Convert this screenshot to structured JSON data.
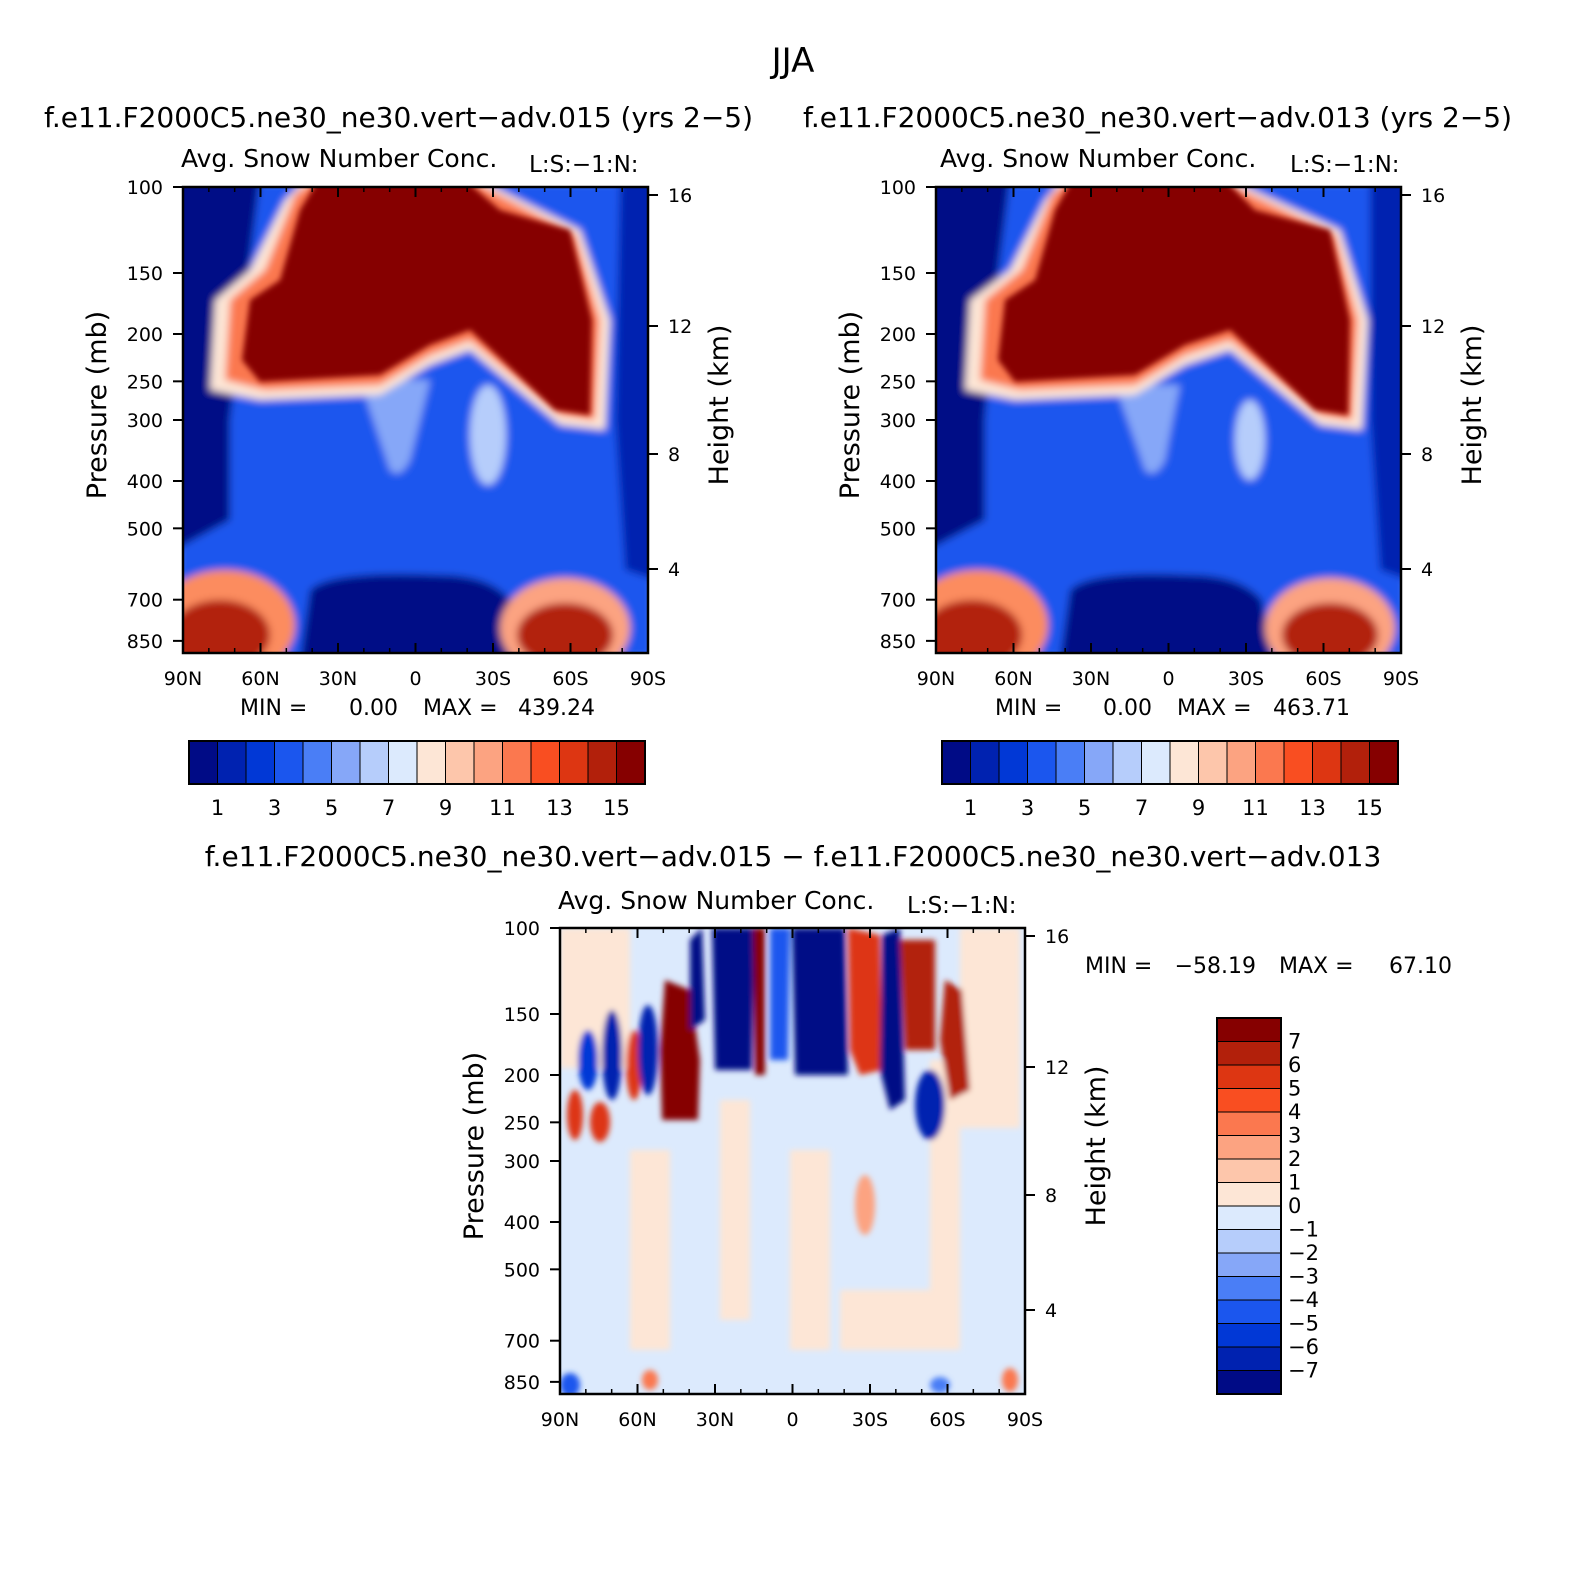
{
  "figure": {
    "title": "JJA"
  },
  "colors": {
    "abs_palette": [
      "#000b86",
      "#0022b0",
      "#0138d6",
      "#1b56ee",
      "#4a7ef6",
      "#86a7f8",
      "#b6cdfb",
      "#dceafd",
      "#fde6d6",
      "#fdc6ab",
      "#fca381",
      "#fb784f",
      "#f94e21",
      "#dd3612",
      "#b2200b",
      "#860000"
    ],
    "diff_palette": [
      "#000b86",
      "#0022b0",
      "#0138d6",
      "#1b56ee",
      "#4a7ef6",
      "#86a7f8",
      "#b6cdfb",
      "#dceafd",
      "#fde6d6",
      "#fdc6ab",
      "#fca381",
      "#fb784f",
      "#f94e21",
      "#dd3612",
      "#b2200b",
      "#860000"
    ]
  },
  "chart_data": [
    {
      "type": "heatmap",
      "case": "f.e11.F2000C5.ne30_ne30.vert-adv.015 (yrs 2-5)",
      "title": "Avg. Snow Number Conc.",
      "units": "L:S:-1:N:",
      "xlabel": "",
      "ylabel": "Pressure (mb)",
      "y2label": "Height (km)",
      "x_ticks": [
        "90N",
        "60N",
        "30N",
        "0",
        "30S",
        "60S",
        "90S"
      ],
      "y_ticks": [
        "100",
        "150",
        "200",
        "250",
        "300",
        "400",
        "500",
        "700",
        "850"
      ],
      "y2_ticks": [
        "16",
        "12",
        "8",
        "4"
      ],
      "x_range": [
        90,
        -90
      ],
      "y_range": [
        100,
        900
      ],
      "y_scale": "log",
      "min_label": "MIN = ",
      "min_value": "0.00",
      "max_label": "MAX = ",
      "max_value": "439.24",
      "colorbar_labels": [
        "1",
        "3",
        "5",
        "7",
        "9",
        "11",
        "13",
        "15"
      ],
      "features": [
        {
          "lat": 15,
          "p": 180,
          "value": 15,
          "note": "upper-troposphere maximum"
        },
        {
          "lat": 80,
          "p": 840,
          "value": 14,
          "note": "low-level NH polar maximum"
        },
        {
          "lat": -60,
          "p": 840,
          "value": 15,
          "note": "low-level SH maximum"
        },
        {
          "lat": 10,
          "p": 800,
          "value": 0,
          "note": "tropical lower minimum"
        }
      ]
    },
    {
      "type": "heatmap",
      "case": "f.e11.F2000C5.ne30_ne30.vert-adv.013 (yrs 2-5)",
      "title": "Avg. Snow Number Conc.",
      "units": "L:S:-1:N:",
      "xlabel": "",
      "ylabel": "Pressure (mb)",
      "y2label": "Height (km)",
      "x_ticks": [
        "90N",
        "60N",
        "30N",
        "0",
        "30S",
        "60S",
        "90S"
      ],
      "y_ticks": [
        "100",
        "150",
        "200",
        "250",
        "300",
        "400",
        "500",
        "700",
        "850"
      ],
      "y2_ticks": [
        "16",
        "12",
        "8",
        "4"
      ],
      "x_range": [
        90,
        -90
      ],
      "y_range": [
        100,
        900
      ],
      "y_scale": "log",
      "min_label": "MIN = ",
      "min_value": "0.00",
      "max_label": "MAX = ",
      "max_value": "463.71",
      "colorbar_labels": [
        "1",
        "3",
        "5",
        "7",
        "9",
        "11",
        "13",
        "15"
      ],
      "features": [
        {
          "lat": 15,
          "p": 180,
          "value": 15,
          "note": "upper-troposphere maximum"
        },
        {
          "lat": 80,
          "p": 840,
          "value": 14,
          "note": "low-level NH polar maximum"
        },
        {
          "lat": -60,
          "p": 840,
          "value": 15,
          "note": "low-level SH maximum"
        },
        {
          "lat": 10,
          "p": 800,
          "value": 0,
          "note": "tropical lower minimum"
        }
      ]
    },
    {
      "type": "heatmap",
      "case": "f.e11.F2000C5.ne30_ne30.vert-adv.015 - f.e11.F2000C5.ne30_ne30.vert-adv.013",
      "title": "Avg. Snow Number Conc.",
      "units": "L:S:-1:N:",
      "xlabel": "",
      "ylabel": "Pressure (mb)",
      "y2label": "Height (km)",
      "x_ticks": [
        "90N",
        "60N",
        "30N",
        "0",
        "30S",
        "60S",
        "90S"
      ],
      "y_ticks": [
        "100",
        "150",
        "200",
        "250",
        "300",
        "400",
        "500",
        "700",
        "850"
      ],
      "y2_ticks": [
        "16",
        "12",
        "8",
        "4"
      ],
      "x_range": [
        90,
        -90
      ],
      "y_range": [
        100,
        900
      ],
      "y_scale": "log",
      "min_label": "MIN = ",
      "min_value": "-58.19",
      "max_label": "MAX = ",
      "max_value": "67.10",
      "colorbar_labels": [
        "7",
        "6",
        "5",
        "4",
        "3",
        "2",
        "1",
        "0",
        "-1",
        "-2",
        "-3",
        "-4",
        "-5",
        "-6",
        "-7"
      ],
      "features": [
        {
          "lat": 38,
          "p": 200,
          "value": 7
        },
        {
          "lat": 18,
          "p": 140,
          "value": -7
        },
        {
          "lat": -5,
          "p": 150,
          "value": -7
        },
        {
          "lat": -45,
          "p": 150,
          "value": 7
        },
        {
          "lat": -62,
          "p": 180,
          "value": 7
        },
        {
          "lat": -35,
          "p": 220,
          "value": -7
        },
        {
          "lat": -25,
          "p": 370,
          "value": 3
        }
      ]
    }
  ]
}
